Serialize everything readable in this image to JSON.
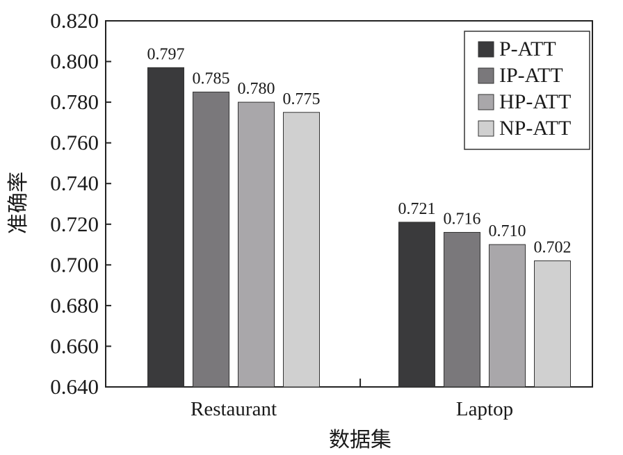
{
  "chart_data": {
    "type": "bar",
    "categories": [
      "Restaurant",
      "Laptop"
    ],
    "series": [
      {
        "name": "P-ATT",
        "values": [
          0.797,
          0.721
        ],
        "color": "#3a3a3c"
      },
      {
        "name": "IP-ATT",
        "values": [
          0.785,
          0.716
        ],
        "color": "#7a787b"
      },
      {
        "name": "HP-ATT",
        "values": [
          0.78,
          0.71
        ],
        "color": "#a9a7aa"
      },
      {
        "name": "NP-ATT",
        "values": [
          0.775,
          0.702
        ],
        "color": "#d0d0d0"
      }
    ],
    "data_labels": [
      [
        "0.797",
        "0.721"
      ],
      [
        "0.785",
        "0.716"
      ],
      [
        "0.780",
        "0.710"
      ],
      [
        "0.775",
        "0.702"
      ]
    ],
    "xlabel": "数据集",
    "ylabel": "准确率",
    "ylim": [
      0.64,
      0.82
    ],
    "yticks": [
      "0.640",
      "0.660",
      "0.680",
      "0.700",
      "0.720",
      "0.740",
      "0.760",
      "0.780",
      "0.800",
      "0.820"
    ],
    "grid": false,
    "legend_position": "top-right"
  }
}
